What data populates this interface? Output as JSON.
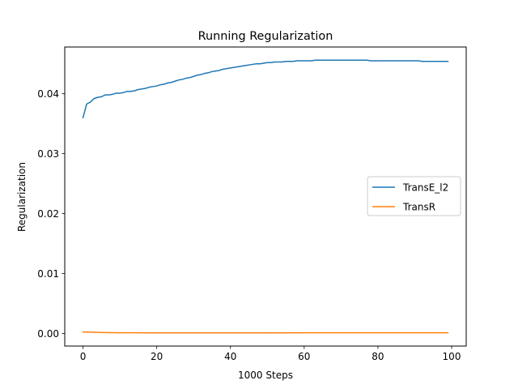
{
  "chart_data": {
    "type": "line",
    "title": "Running Regularization",
    "xlabel": "1000 Steps",
    "ylabel": "Regularization",
    "xlim": [
      -4.95,
      103.95
    ],
    "ylim": [
      -0.0021,
      0.0478
    ],
    "xticks": [
      0,
      20,
      40,
      60,
      80,
      100
    ],
    "xtick_labels": [
      "0",
      "20",
      "40",
      "60",
      "80",
      "100"
    ],
    "yticks": [
      0.0,
      0.01,
      0.02,
      0.03,
      0.04
    ],
    "ytick_labels": [
      "0.00",
      "0.01",
      "0.02",
      "0.03",
      "0.04"
    ],
    "grid": false,
    "legend_position": "center-right",
    "series": [
      {
        "name": "TransE_l2",
        "color": "#1f77b4",
        "x": [
          0,
          1,
          2,
          3,
          4,
          5,
          6,
          7,
          8,
          9,
          10,
          11,
          12,
          13,
          14,
          15,
          16,
          17,
          18,
          19,
          20,
          21,
          22,
          23,
          24,
          25,
          26,
          27,
          28,
          29,
          30,
          31,
          32,
          33,
          34,
          35,
          36,
          37,
          38,
          39,
          40,
          41,
          42,
          43,
          44,
          45,
          46,
          47,
          48,
          49,
          50,
          51,
          52,
          53,
          54,
          55,
          56,
          57,
          58,
          59,
          60,
          61,
          62,
          63,
          64,
          65,
          66,
          67,
          68,
          69,
          70,
          71,
          72,
          73,
          74,
          75,
          76,
          77,
          78,
          79,
          80,
          81,
          82,
          83,
          84,
          85,
          86,
          87,
          88,
          89,
          90,
          91,
          92,
          93,
          94,
          95,
          96,
          97,
          98,
          99
        ],
        "y": [
          0.036,
          0.0383,
          0.0386,
          0.0392,
          0.0394,
          0.0395,
          0.0398,
          0.0398,
          0.0399,
          0.0401,
          0.0401,
          0.0402,
          0.0404,
          0.0404,
          0.0405,
          0.0407,
          0.0408,
          0.0409,
          0.0411,
          0.0412,
          0.0413,
          0.0415,
          0.0416,
          0.0418,
          0.0419,
          0.0421,
          0.0423,
          0.0424,
          0.0426,
          0.0427,
          0.0429,
          0.0431,
          0.0432,
          0.0434,
          0.0435,
          0.0437,
          0.0438,
          0.0439,
          0.0441,
          0.0442,
          0.0443,
          0.0444,
          0.0445,
          0.0446,
          0.0447,
          0.0448,
          0.0449,
          0.045,
          0.045,
          0.0451,
          0.0452,
          0.0452,
          0.0453,
          0.0453,
          0.0453,
          0.0454,
          0.0454,
          0.0454,
          0.0455,
          0.0455,
          0.0455,
          0.0455,
          0.0455,
          0.0456,
          0.0456,
          0.0456,
          0.0456,
          0.0456,
          0.0456,
          0.0456,
          0.0456,
          0.0456,
          0.0456,
          0.0456,
          0.0456,
          0.0456,
          0.0456,
          0.0456,
          0.0455,
          0.0455,
          0.0455,
          0.0455,
          0.0455,
          0.0455,
          0.0455,
          0.0455,
          0.0455,
          0.0455,
          0.0455,
          0.0455,
          0.0455,
          0.0455,
          0.0454,
          0.0454,
          0.0454,
          0.0454,
          0.0454,
          0.0454,
          0.0454,
          0.0454
        ]
      },
      {
        "name": "TransR",
        "color": "#ff7f0e",
        "x": [
          0,
          2,
          4,
          6,
          8,
          10,
          15,
          20,
          30,
          40,
          50,
          60,
          70,
          80,
          90,
          99
        ],
        "y": [
          0.00025,
          0.00022,
          0.00018,
          0.00015,
          0.00013,
          0.00012,
          0.00011,
          0.0001,
          0.0001,
          0.0001,
          0.0001,
          0.00011,
          0.00011,
          0.00012,
          0.00012,
          0.00012
        ]
      }
    ]
  }
}
